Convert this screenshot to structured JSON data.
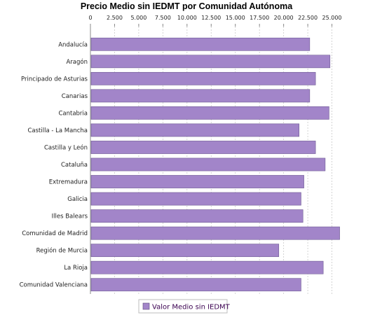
{
  "chart_data": {
    "type": "bar",
    "orientation": "horizontal",
    "title": "Precio Medio sin IEDMT por Comunidad Autónoma",
    "xlabel": "",
    "ylabel": "",
    "xlim": [
      0,
      27500
    ],
    "tick_values": [
      0,
      2500,
      5000,
      7500,
      10000,
      12500,
      15000,
      17500,
      20000,
      22500,
      25000
    ],
    "tick_labels": [
      "0",
      "2.500",
      "5.000",
      "7.500",
      "10.000",
      "12.500",
      "15.000",
      "17.500",
      "20.000",
      "22.500",
      "25.000"
    ],
    "grid": true,
    "legend_position": "bottom",
    "bar_color": "#a285c9",
    "categories": [
      "Andalucía",
      "Aragón",
      "Principado de Asturias",
      "Canarias",
      "Cantabria",
      "Castilla - La Mancha",
      "Castilla y León",
      "Cataluña",
      "Extremadura",
      "Galicia",
      "Illes Balears",
      "Comunidad de Madrid",
      "Región de Murcia",
      "La Rioja",
      "Comunidad Valenciana"
    ],
    "series": [
      {
        "name": "Valor Medio sin IEDMT",
        "values": [
          22700,
          24800,
          23300,
          22700,
          24700,
          21600,
          23300,
          24300,
          22100,
          21800,
          22000,
          25800,
          19500,
          24100,
          21800
        ]
      }
    ]
  }
}
